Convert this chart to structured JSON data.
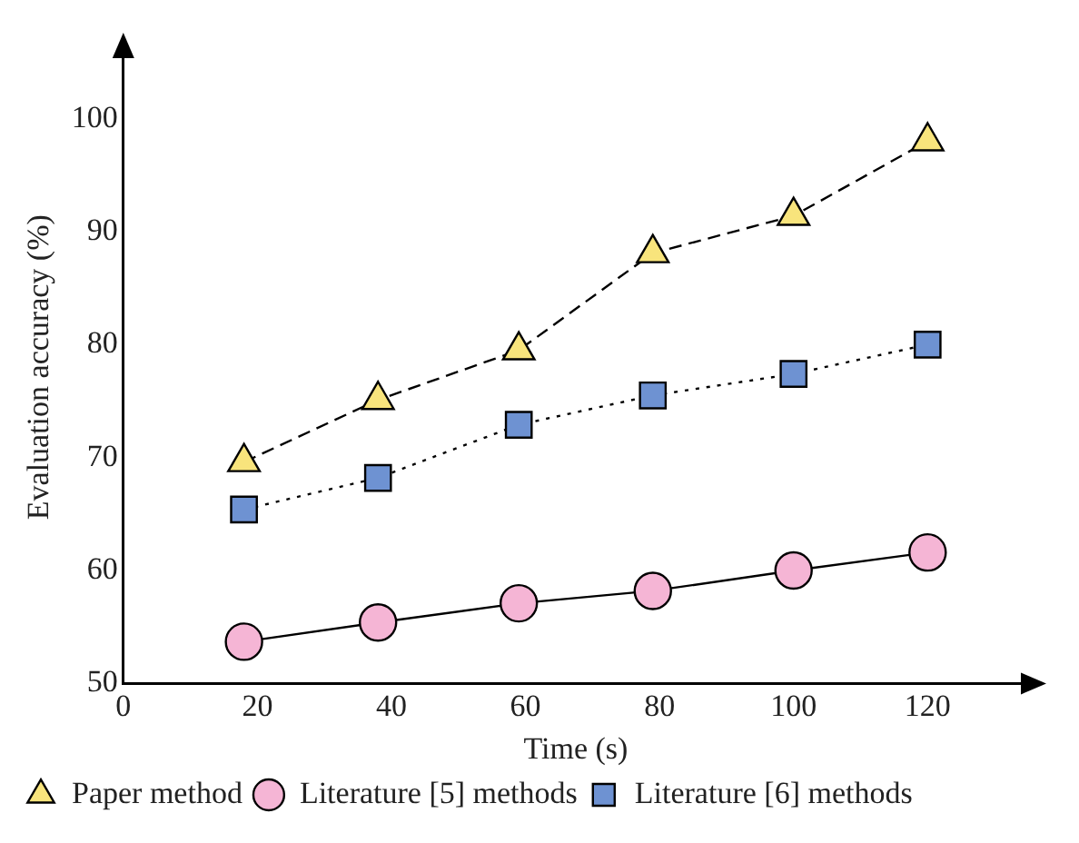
{
  "chart_data": {
    "type": "line",
    "xlabel": "Time (s)",
    "ylabel": "Evaluation accuracy (%)",
    "x": [
      18,
      38,
      59,
      79,
      100,
      120
    ],
    "series": [
      {
        "name": "Paper method",
        "color": "#f8e47c",
        "marker": "triangle",
        "line_style": "dashed",
        "values": [
          69.6,
          75.1,
          79.5,
          88.1,
          91.4,
          98
        ]
      },
      {
        "name": "Literature [5] methods",
        "color": "#f5b5d5",
        "marker": "circle",
        "line_style": "solid",
        "values": [
          53.7,
          55.4,
          57.1,
          58.2,
          60,
          61.6
        ]
      },
      {
        "name": "Literature [6] methods",
        "color": "#6e92d2",
        "marker": "square",
        "line_style": "dotted",
        "values": [
          65.4,
          68.2,
          72.9,
          75.5,
          77.4,
          80
        ]
      }
    ],
    "xlim": [
      0,
      135
    ],
    "xticks": [
      0,
      20,
      40,
      60,
      80,
      100,
      120
    ],
    "ylim": [
      50,
      106
    ],
    "yticks": [
      50,
      60,
      70,
      80,
      90,
      100
    ],
    "grid": false,
    "legend": "bottom"
  }
}
